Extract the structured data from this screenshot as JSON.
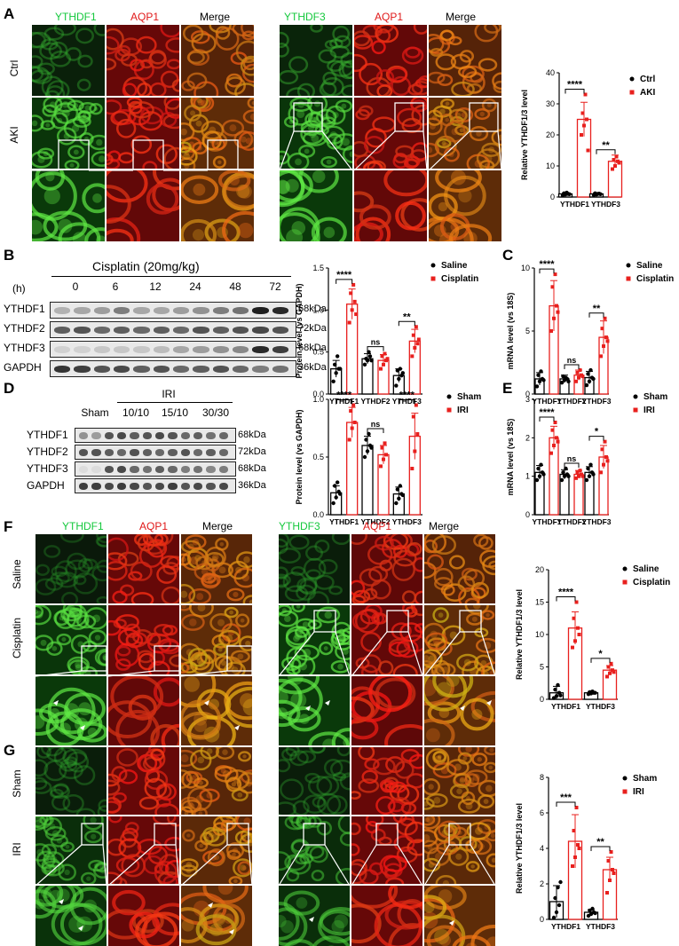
{
  "panels": {
    "A": {
      "letter": "A",
      "col_labels_left": [
        "YTHDF1",
        "AQP1",
        "Merge"
      ],
      "col_labels_right": [
        "YTHDF3",
        "AQP1",
        "Merge"
      ],
      "row_labels": [
        "Ctrl",
        "AKI"
      ]
    },
    "B": {
      "letter": "B",
      "title": "Cisplatin (20mg/kg)",
      "h_label": "(h)",
      "lanes": [
        "0",
        "6",
        "12",
        "24",
        "48",
        "72"
      ],
      "rows": [
        {
          "name": "YTHDF1",
          "kda": "68kDa"
        },
        {
          "name": "YTHDF2",
          "kda": "72kDa"
        },
        {
          "name": "YTHDF3",
          "kda": "68kDa"
        },
        {
          "name": "GAPDH",
          "kda": "36kDa"
        }
      ]
    },
    "C": {
      "letter": "C"
    },
    "D": {
      "letter": "D",
      "group_title": "IRI",
      "lanes": [
        "Sham",
        "10/10",
        "15/10",
        "30/30"
      ],
      "rows": [
        {
          "name": "YTHDF1",
          "kda": "68kDa"
        },
        {
          "name": "YTHDF2",
          "kda": "72kDa"
        },
        {
          "name": "YTHDF3",
          "kda": "68kDa"
        },
        {
          "name": "GAPDH",
          "kda": "36kDa"
        }
      ]
    },
    "E": {
      "letter": "E"
    },
    "F": {
      "letter": "F",
      "col_labels_left": [
        "YTHDF1",
        "AQP1",
        "Merge"
      ],
      "col_labels_right": [
        "YTHDF3",
        "AQP1",
        "Merge"
      ],
      "row_labels": [
        "Saline",
        "Cisplatin"
      ]
    },
    "G": {
      "letter": "G",
      "row_labels": [
        "Sham",
        "IRI"
      ]
    }
  },
  "colors": {
    "control": "#000000",
    "treated": "#e8201e",
    "green_label": "#14c83c",
    "red_label": "#e01818"
  },
  "chart_data": [
    {
      "id": "A",
      "type": "bar",
      "ylabel": "Relative YTHDF1/3  level",
      "categories": [
        "YTHDF1",
        "YTHDF3"
      ],
      "ylim": [
        0,
        40
      ],
      "yticks": [
        0,
        10,
        20,
        30,
        40
      ],
      "series": [
        {
          "name": "Ctrl",
          "values": [
            1,
            1
          ],
          "errors": [
            0.3,
            0.3
          ],
          "points": [
            [
              0.5,
              0.8,
              1,
              1.2,
              1.4,
              0.9
            ],
            [
              0.6,
              0.8,
              1.1,
              1.2,
              1.0,
              0.9
            ]
          ]
        },
        {
          "name": "AKI",
          "values": [
            25,
            11.5
          ],
          "errors": [
            5.5,
            2
          ],
          "points": [
            [
              20,
              23,
              25,
              27,
              33,
              15
            ],
            [
              9,
              10,
              11.5,
              12,
              13,
              11
            ]
          ]
        }
      ],
      "significance": [
        "****",
        "**"
      ]
    },
    {
      "id": "B",
      "type": "bar",
      "ylabel": "Protein level (vs GAPDH)",
      "categories": [
        "YTHDF1",
        "YTHDF2",
        "YTHDF3"
      ],
      "ylim": [
        0,
        1.5
      ],
      "yticks": [
        0.0,
        0.5,
        1.0,
        1.5
      ],
      "series": [
        {
          "name": "Saline",
          "values": [
            0.3,
            0.42,
            0.22
          ],
          "errors": [
            0.1,
            0.06,
            0.08
          ],
          "points": [
            [
              0.15,
              0.25,
              0.3,
              0.35,
              0.45,
              0.3
            ],
            [
              0.35,
              0.4,
              0.45,
              0.42,
              0.5,
              0.4
            ],
            [
              0.1,
              0.18,
              0.22,
              0.28,
              0.3,
              0.25
            ]
          ]
        },
        {
          "name": "Cisplatin",
          "values": [
            1.07,
            0.4,
            0.63
          ],
          "errors": [
            0.18,
            0.07,
            0.14
          ],
          "points": [
            [
              0.85,
              1.0,
              1.1,
              1.2,
              1.3,
              0.95
            ],
            [
              0.3,
              0.35,
              0.4,
              0.45,
              0.48,
              0.42
            ],
            [
              0.45,
              0.55,
              0.6,
              0.7,
              0.8,
              0.65
            ]
          ]
        }
      ],
      "significance": [
        "****",
        "ns",
        "**"
      ]
    },
    {
      "id": "C",
      "type": "bar",
      "ylabel": "mRNA level (vs 18S)",
      "categories": [
        "YTHDF1",
        "YTHDF2",
        "YTHDF3"
      ],
      "ylim": [
        0,
        10
      ],
      "yticks": [
        0,
        5,
        10
      ],
      "series": [
        {
          "name": "Saline",
          "values": [
            1.2,
            1.2,
            1.3
          ],
          "errors": [
            0.5,
            0.3,
            0.5
          ],
          "points": [
            [
              0.6,
              1.0,
              1.2,
              1.5,
              1.8,
              1.1
            ],
            [
              0.9,
              1.1,
              1.2,
              1.4,
              1.3,
              1.0
            ],
            [
              0.7,
              1.0,
              1.3,
              1.6,
              1.9,
              1.2
            ]
          ]
        },
        {
          "name": "Cisplatin",
          "values": [
            7,
            1.5,
            4.5
          ],
          "errors": [
            2,
            0.4,
            1.3
          ],
          "points": [
            [
              5,
              6,
              7,
              8.5,
              9.5,
              6.5
            ],
            [
              1.0,
              1.3,
              1.5,
              1.7,
              1.9,
              1.4
            ],
            [
              3,
              3.8,
              4.5,
              5.2,
              6,
              4.2
            ]
          ]
        }
      ],
      "significance": [
        "****",
        "ns",
        "**"
      ]
    },
    {
      "id": "D",
      "type": "bar",
      "ylabel": "Protein level (vs GAPDH)",
      "categories": [
        "YTHDF1",
        "YTHDF2",
        "YTHDF3"
      ],
      "ylim": [
        0,
        1.0
      ],
      "yticks": [
        0.0,
        0.5,
        1.0
      ],
      "series": [
        {
          "name": "Sham",
          "values": [
            0.19,
            0.6,
            0.18
          ],
          "errors": [
            0.06,
            0.08,
            0.06
          ],
          "points": [
            [
              0.1,
              0.15,
              0.2,
              0.25,
              0.28,
              0.18
            ],
            [
              0.5,
              0.55,
              0.6,
              0.65,
              0.7,
              0.58
            ],
            [
              0.1,
              0.14,
              0.18,
              0.22,
              0.25,
              0.17
            ]
          ]
        },
        {
          "name": "IRI",
          "values": [
            0.8,
            0.52,
            0.68
          ],
          "errors": [
            0.13,
            0.08,
            0.2
          ],
          "points": [
            [
              0.65,
              0.75,
              0.8,
              0.9,
              0.95
            ],
            [
              0.42,
              0.48,
              0.52,
              0.58,
              0.62
            ],
            [
              0.4,
              0.55,
              0.7,
              0.85,
              0.95
            ]
          ]
        }
      ],
      "significance": [
        "****",
        "ns",
        "****"
      ]
    },
    {
      "id": "E",
      "type": "bar",
      "ylabel": "mRNA level (vs 18S)",
      "categories": [
        "YTHDF1",
        "YTHDF2",
        "YTHDF3"
      ],
      "ylim": [
        0,
        3
      ],
      "yticks": [
        0,
        1,
        2,
        3
      ],
      "series": [
        {
          "name": "Sham",
          "values": [
            1.1,
            1.05,
            1.1
          ],
          "errors": [
            0.18,
            0.12,
            0.15
          ],
          "points": [
            [
              0.9,
              1.0,
              1.1,
              1.2,
              1.3,
              1.05
            ],
            [
              0.9,
              1.0,
              1.05,
              1.1,
              1.2,
              1.0
            ],
            [
              0.9,
              1.0,
              1.1,
              1.2,
              1.3,
              1.05
            ]
          ]
        },
        {
          "name": "IRI",
          "values": [
            2.0,
            1.05,
            1.5
          ],
          "errors": [
            0.3,
            0.1,
            0.3
          ],
          "points": [
            [
              1.6,
              1.8,
              2.0,
              2.2,
              2.4,
              1.9
            ],
            [
              0.95,
              1.0,
              1.05,
              1.1,
              1.15,
              1.0
            ],
            [
              1.1,
              1.3,
              1.5,
              1.7,
              1.9,
              1.4
            ]
          ]
        }
      ],
      "significance": [
        "****",
        "ns",
        "*"
      ]
    },
    {
      "id": "F",
      "type": "bar",
      "ylabel": "Relative YTHDF1/3  level",
      "categories": [
        "YTHDF1",
        "YTHDF3"
      ],
      "ylim": [
        0,
        20
      ],
      "yticks": [
        0,
        5,
        10,
        15,
        20
      ],
      "series": [
        {
          "name": "Saline",
          "values": [
            1,
            1
          ],
          "errors": [
            1,
            0.2
          ],
          "points": [
            [
              0.2,
              0.5,
              1,
              1.5,
              2.2,
              0.6
            ],
            [
              0.8,
              0.9,
              1.0,
              1.1,
              1.2,
              1.0
            ]
          ]
        },
        {
          "name": "Cisplatin",
          "values": [
            11,
            4.5
          ],
          "errors": [
            2.5,
            0.7
          ],
          "points": [
            [
              8,
              9,
              11,
              12.5,
              15,
              10
            ],
            [
              3.5,
              4,
              4.5,
              5,
              5.5,
              4.2
            ]
          ]
        }
      ],
      "significance": [
        "****",
        "*"
      ]
    },
    {
      "id": "G",
      "type": "bar",
      "ylabel": "Relative YTHDF1/3  level",
      "categories": [
        "YTHDF1",
        "YTHDF3"
      ],
      "ylim": [
        0,
        8
      ],
      "yticks": [
        0,
        2,
        4,
        6,
        8
      ],
      "series": [
        {
          "name": "Sham",
          "values": [
            1,
            0.4
          ],
          "errors": [
            0.9,
            0.15
          ],
          "points": [
            [
              0.1,
              0.4,
              0.8,
              1.2,
              1.8,
              2.1
            ],
            [
              0.2,
              0.3,
              0.4,
              0.5,
              0.6,
              0.35
            ]
          ]
        },
        {
          "name": "IRI",
          "values": [
            4.4,
            2.8
          ],
          "errors": [
            1.5,
            0.7
          ],
          "points": [
            [
              3,
              3.5,
              4.2,
              5,
              6.3,
              4.0
            ],
            [
              1.5,
              2.2,
              2.8,
              3.3,
              3.8,
              2.6
            ]
          ]
        }
      ],
      "significance": [
        "***",
        "**"
      ]
    }
  ]
}
